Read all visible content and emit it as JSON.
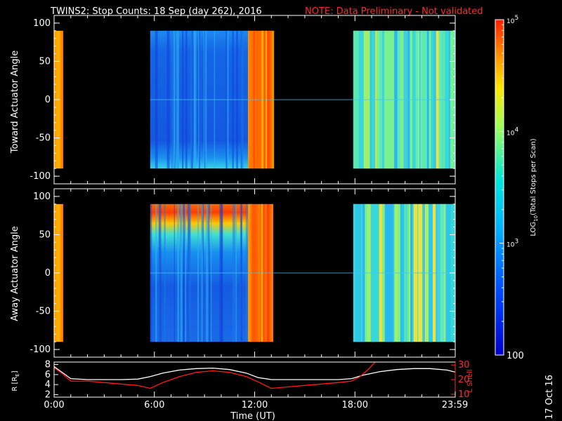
{
  "title": "TWINS2: Stop Counts: 18 Sep (day 262), 2016",
  "note": "NOTE: Data Preliminary - Not validated",
  "stamp": "17 Oct 16",
  "chart_data": [
    {
      "type": "heatmap",
      "ylabel": "Toward Actuator Angle",
      "ylim": [
        -110,
        110
      ],
      "y_ticks": [
        "100",
        "50",
        "0",
        "-50",
        "-100"
      ],
      "angle_range": [
        -90,
        90
      ],
      "xlim": [
        0,
        24
      ],
      "data_segments": [
        {
          "start": 0.0,
          "end": 0.55,
          "level": "high"
        },
        {
          "start": 5.75,
          "end": 11.6,
          "level": "low"
        },
        {
          "start": 11.6,
          "end": 13.1,
          "level": "high"
        },
        {
          "start": 17.9,
          "end": 24.0,
          "level": "mid"
        }
      ]
    },
    {
      "type": "heatmap",
      "ylabel": "Away Actuator Angle",
      "ylim": [
        -110,
        110
      ],
      "y_ticks": [
        "100",
        "50",
        "0",
        "-50",
        "-100"
      ],
      "angle_range": [
        -90,
        90
      ],
      "xlim": [
        0,
        24
      ],
      "data_segments": [
        {
          "start": 0.0,
          "end": 0.55,
          "level": "high"
        },
        {
          "start": 5.75,
          "end": 11.6,
          "level": "low"
        },
        {
          "start": 11.6,
          "end": 13.1,
          "level": "high"
        },
        {
          "start": 17.9,
          "end": 24.0,
          "level": "mid"
        }
      ]
    },
    {
      "type": "line",
      "ylabel": "R [R",
      "ylabel_sub": "E",
      "ylabel_end": "]",
      "y2label": "L Shell",
      "xlabel": "Time (UT)",
      "x_ticks": [
        {
          "t": 0,
          "label": "0:00"
        },
        {
          "t": 6,
          "label": "6:00"
        },
        {
          "t": 12,
          "label": "12:00"
        },
        {
          "t": 18,
          "label": "18:00"
        },
        {
          "t": 23.98,
          "label": "23:59"
        }
      ],
      "ylim": [
        1.5,
        8.5
      ],
      "y_ticks": [
        "8",
        "6",
        "4",
        "2"
      ],
      "y2lim": [
        8,
        32
      ],
      "y2_ticks": [
        "30",
        "20",
        "10"
      ],
      "series": [
        {
          "color": "#ffffff",
          "x": [
            0,
            0.5,
            1,
            2,
            3,
            4,
            5,
            5.75,
            6.5,
            7.5,
            8.5,
            9.5,
            10.5,
            11.5,
            12.2,
            13,
            14,
            15,
            16,
            17,
            17.8,
            18.5,
            19.5,
            20.5,
            21.5,
            22.5,
            23.5,
            24
          ],
          "values": [
            7.6,
            6.4,
            5.2,
            5.0,
            5.0,
            5.0,
            5.1,
            5.6,
            6.3,
            6.9,
            7.2,
            7.3,
            7.0,
            6.3,
            5.4,
            5.0,
            5.0,
            5.0,
            5.0,
            5.0,
            5.2,
            5.9,
            6.6,
            7.0,
            7.2,
            7.2,
            6.9,
            6.5
          ]
        },
        {
          "color": "#ff1a1a",
          "axis": "right",
          "x": [
            0,
            0.5,
            1,
            2,
            3,
            4,
            5,
            5.75,
            6.5,
            7.5,
            8.5,
            9.5,
            10.5,
            11.5,
            12.3,
            13,
            14,
            15,
            16,
            17,
            17.8,
            18.3,
            18.8,
            19.2
          ],
          "values": [
            28,
            24,
            19,
            19,
            18,
            17,
            16,
            14,
            18,
            22,
            25,
            26,
            25,
            22,
            18,
            14,
            15,
            16,
            17,
            18,
            19,
            22,
            27,
            32
          ]
        }
      ]
    }
  ],
  "colorbar": {
    "label": "LOG",
    "label_sub": "10",
    "label_rest": "(Total Stops per Scan)",
    "ticks": [
      {
        "v": 5,
        "base": "10",
        "exp": "5"
      },
      {
        "v": 4,
        "base": "10",
        "exp": "4"
      },
      {
        "v": 3,
        "base": "10",
        "exp": "3"
      },
      {
        "v": 2,
        "text": "100"
      }
    ],
    "range": [
      2,
      5
    ]
  }
}
